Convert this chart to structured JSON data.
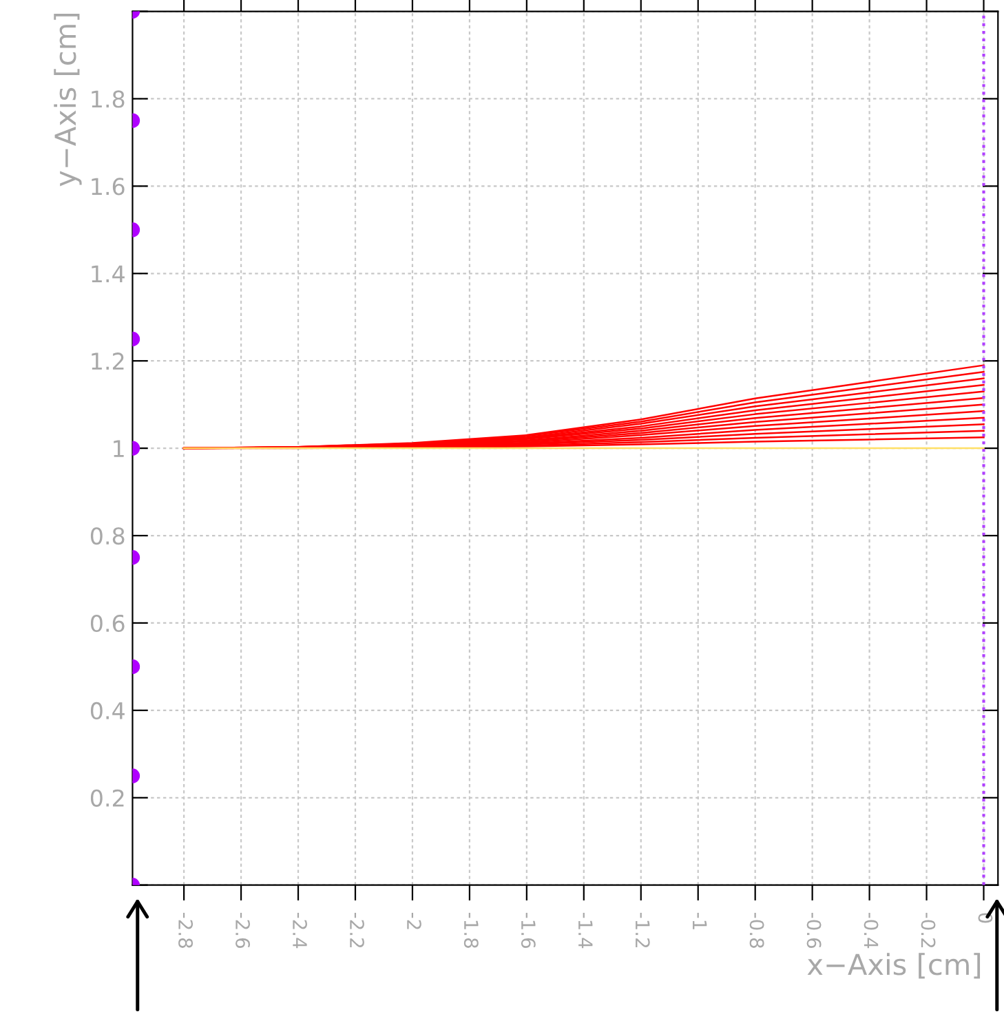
{
  "chart_data": {
    "type": "line",
    "xlabel": "x−Axis [cm]",
    "ylabel": "y−Axis [cm]",
    "xlim": [
      -2.98,
      0.05
    ],
    "ylim": [
      0,
      2
    ],
    "xticks": [
      -2.8,
      -2.6,
      -2.4,
      -2.2,
      -2,
      -1.8,
      -1.6,
      -1.4,
      -1.2,
      -1,
      -0.8,
      -0.6,
      -0.4,
      -0.2,
      0
    ],
    "yticks": [
      {
        "value": 0,
        "label": null
      },
      0.2,
      0.4,
      0.6,
      0.8,
      1,
      1.2,
      1.4,
      1.6,
      1.8,
      {
        "value": 2,
        "label": null
      }
    ],
    "grid": true,
    "legend": false,
    "line_style": "solid",
    "marker": "none",
    "ref_lines": [
      {
        "axis": "x",
        "value": 0,
        "color": "#b040ff",
        "line_style": "dotted"
      }
    ],
    "series": [
      {
        "color": "#ff0000",
        "x": [
          -2.8,
          -2.4,
          -2.0,
          -1.6,
          -1.2,
          -0.8,
          -0.4,
          0
        ],
        "values": [
          1.0,
          1.003,
          1.012,
          1.03,
          1.066,
          1.114,
          1.152,
          1.19
        ]
      },
      {
        "color": "#ff0000",
        "x": [
          -2.8,
          -2.4,
          -2.0,
          -1.6,
          -1.2,
          -0.8,
          -0.4,
          0
        ],
        "values": [
          1.0,
          1.003,
          1.011,
          1.028,
          1.061,
          1.105,
          1.14,
          1.175
        ]
      },
      {
        "color": "#ff0000",
        "x": [
          -2.8,
          -2.4,
          -2.0,
          -1.6,
          -1.2,
          -0.8,
          -0.4,
          0
        ],
        "values": [
          1.0,
          1.003,
          1.01,
          1.025,
          1.056,
          1.096,
          1.128,
          1.16
        ]
      },
      {
        "color": "#ff0000",
        "x": [
          -2.8,
          -2.4,
          -2.0,
          -1.6,
          -1.2,
          -0.8,
          -0.4,
          0
        ],
        "values": [
          1.0,
          1.002,
          1.009,
          1.023,
          1.05,
          1.087,
          1.116,
          1.145
        ]
      },
      {
        "color": "#ff0000",
        "x": [
          -2.8,
          -2.4,
          -2.0,
          -1.6,
          -1.2,
          -0.8,
          -0.4,
          0
        ],
        "values": [
          1.0,
          1.002,
          1.008,
          1.021,
          1.045,
          1.078,
          1.104,
          1.13
        ]
      },
      {
        "color": "#ff0000",
        "x": [
          -2.8,
          -2.4,
          -2.0,
          -1.6,
          -1.2,
          -0.8,
          -0.4,
          0
        ],
        "values": [
          1.0,
          1.002,
          1.007,
          1.018,
          1.04,
          1.069,
          1.092,
          1.115
        ]
      },
      {
        "color": "#ff0000",
        "x": [
          -2.8,
          -2.4,
          -2.0,
          -1.6,
          -1.2,
          -0.8,
          -0.4,
          0
        ],
        "values": [
          1.0,
          1.002,
          1.006,
          1.016,
          1.035,
          1.06,
          1.08,
          1.1
        ]
      },
      {
        "color": "#ff0000",
        "x": [
          -2.8,
          -2.4,
          -2.0,
          -1.6,
          -1.2,
          -0.8,
          -0.4,
          0
        ],
        "values": [
          1.0,
          1.001,
          1.005,
          1.013,
          1.03,
          1.051,
          1.068,
          1.085
        ]
      },
      {
        "color": "#ff0000",
        "x": [
          -2.8,
          -2.4,
          -2.0,
          -1.6,
          -1.2,
          -0.8,
          -0.4,
          0
        ],
        "values": [
          1.0,
          1.001,
          1.004,
          1.011,
          1.024,
          1.042,
          1.056,
          1.07
        ]
      },
      {
        "color": "#ff0000",
        "x": [
          -2.8,
          -2.4,
          -2.0,
          -1.6,
          -1.2,
          -0.8,
          -0.4,
          0
        ],
        "values": [
          1.0,
          1.001,
          1.003,
          1.009,
          1.019,
          1.033,
          1.044,
          1.055
        ]
      },
      {
        "color": "#ff0000",
        "x": [
          -2.8,
          -2.4,
          -2.0,
          -1.6,
          -1.2,
          -0.8,
          -0.4,
          0
        ],
        "values": [
          1.0,
          1.001,
          1.003,
          1.006,
          1.014,
          1.024,
          1.032,
          1.04
        ]
      },
      {
        "color": "#ff0000",
        "x": [
          -2.8,
          -2.4,
          -2.0,
          -1.6,
          -1.2,
          -0.8,
          -0.4,
          0
        ],
        "values": [
          1.0,
          1.0,
          1.002,
          1.004,
          1.009,
          1.015,
          1.02,
          1.025
        ]
      },
      {
        "color": "#ffe066",
        "x": [
          -2.8,
          0
        ],
        "values": [
          1.0,
          1.0
        ]
      },
      {
        "type": "scatter",
        "marker": "circle",
        "color": "#b000ff",
        "x": [
          -2.98,
          -2.98,
          -2.98,
          -2.98,
          -2.98,
          -2.98,
          -2.98,
          -2.98,
          -2.98
        ],
        "values": [
          0,
          0.25,
          0.5,
          0.75,
          1.0,
          1.25,
          1.5,
          1.75,
          2.0
        ]
      }
    ]
  }
}
